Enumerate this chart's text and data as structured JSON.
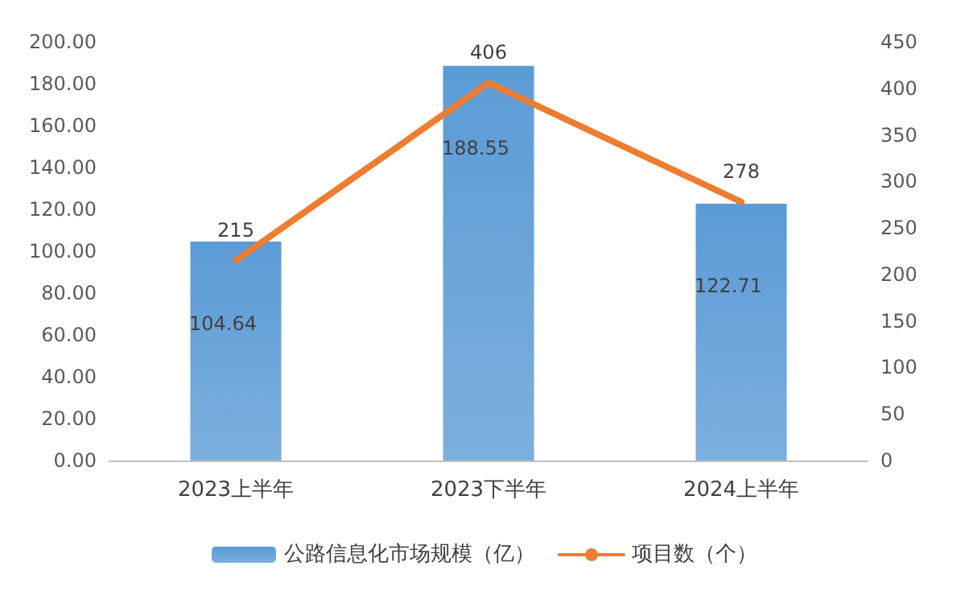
{
  "chart_data": {
    "type": "bar",
    "categories": [
      "2023上半年",
      "2023下半年",
      "2024上半年"
    ],
    "series": [
      {
        "name": "公路信息化市场规模（亿）",
        "color": "#5b9bd5",
        "values": [
          104.64,
          188.55,
          122.71
        ]
      },
      {
        "name": "项目数（个）",
        "type": "line",
        "axis": "y2",
        "color": "#ed7d31",
        "values": [
          215,
          406,
          278
        ],
        "marker": "none"
      }
    ],
    "ylim": [
      0,
      200
    ],
    "yticks": [
      {
        "value": 0,
        "label": "0.00"
      },
      {
        "value": 20,
        "label": "20.00"
      },
      {
        "value": 40,
        "label": "40.00"
      },
      {
        "value": 60,
        "label": "60.00"
      },
      {
        "value": 80,
        "label": "80.00"
      },
      {
        "value": 100,
        "label": "100.00"
      },
      {
        "value": 120,
        "label": "120.00"
      },
      {
        "value": 140,
        "label": "140.00"
      },
      {
        "value": 160,
        "label": "160.00"
      },
      {
        "value": 180,
        "label": "180.00"
      },
      {
        "value": 200,
        "label": "200.00"
      }
    ],
    "y2lim": [
      0,
      450
    ],
    "y2ticks": [
      0,
      50,
      100,
      150,
      200,
      250,
      300,
      350,
      400,
      450
    ],
    "data_labels": true,
    "legend": "bottom",
    "grid": false
  }
}
